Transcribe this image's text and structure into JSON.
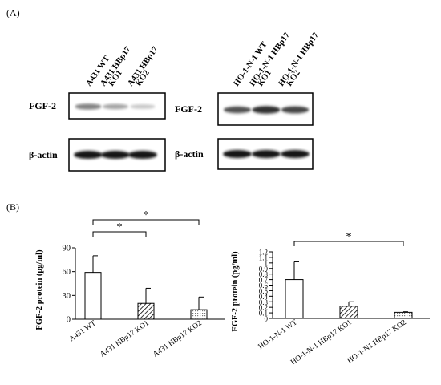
{
  "panel_a": {
    "label": "(A)",
    "blots": [
      {
        "lanes": [
          "A431 WT",
          "A431 HBp17 KO1",
          "A431 HBp17 KO2"
        ],
        "lane_lines": [
          [
            "A431 WT"
          ],
          [
            "A431 HBp17",
            "KO1"
          ],
          [
            "A431 HBp17",
            "KO2"
          ]
        ],
        "rows": [
          {
            "label": "FGF-2",
            "band_intensity": [
              0.55,
              0.4,
              0.25
            ]
          },
          {
            "label": "β-actin",
            "band_intensity": [
              1.0,
              1.0,
              1.0
            ]
          }
        ]
      },
      {
        "lanes": [
          "HO-1-N-1 WT",
          "HO-1-N-1 HBp17 KO1",
          "HO-1-N-1 HBp17 KO2"
        ],
        "lane_lines": [
          [
            "HO-1-N-1 WT"
          ],
          [
            "HO-1-N-1 HBp17",
            "KO1"
          ],
          [
            "HO-1-N-1 HBp17",
            "KO2"
          ]
        ],
        "rows": [
          {
            "label": "FGF-2",
            "band_intensity": [
              0.75,
              0.9,
              0.8
            ]
          },
          {
            "label": "β-actin",
            "band_intensity": [
              1.0,
              1.0,
              1.0
            ]
          }
        ]
      }
    ]
  },
  "panel_b": {
    "label": "(B)"
  },
  "chart_data": [
    {
      "type": "bar",
      "categories": [
        "A431 WT",
        "A431 HBp17 KO1",
        "A431 HBp17 KO2"
      ],
      "values": [
        59,
        20,
        12
      ],
      "errors": [
        21,
        19,
        16
      ],
      "ylabel": "FGF-2 protein (pg/ml)",
      "ylim": [
        0,
        90
      ],
      "yticks": [
        "0",
        "30",
        "60",
        "90"
      ],
      "bar_patterns": [
        "white",
        "diagonal-hatch",
        "dotted"
      ],
      "significance": [
        {
          "from": 0,
          "to": 1,
          "label": "*"
        },
        {
          "from": 0,
          "to": 2,
          "label": "*"
        }
      ]
    },
    {
      "type": "bar",
      "categories": [
        "HO-1-N-1 WT",
        "HO-1-N-1 HBp17 KO1",
        "HO-1-N1 HBp17 KO2"
      ],
      "values": [
        0.7,
        0.22,
        0.11
      ],
      "errors": [
        0.32,
        0.08,
        0.01
      ],
      "ylabel": "FGF-2 protein (pg/ml)",
      "ylim": [
        0,
        1.2
      ],
      "yticks": [
        "0",
        "0.1",
        "0.2",
        "0.3",
        "0.4",
        "0.5",
        "0.6",
        "0.7",
        "0.8",
        "0.9",
        "1",
        "1.1",
        "1.2"
      ],
      "bar_patterns": [
        "white",
        "diagonal-hatch",
        "dotted"
      ],
      "significance": [
        {
          "from": 0,
          "to": 2,
          "label": "*"
        }
      ]
    }
  ]
}
